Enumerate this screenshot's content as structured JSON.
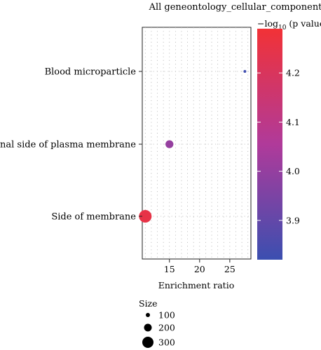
{
  "chart_data": {
    "type": "scatter",
    "title": "All geneontology_cellular_component",
    "xlabel": "Enrichment ratio",
    "categories": [
      "Blood microparticle",
      "External side of plasma membrane",
      "Side of membrane"
    ],
    "points": [
      {
        "category": "Blood microparticle",
        "x": 27.5,
        "size": 90,
        "p_log10": 3.83
      },
      {
        "category": "External side of plasma membrane",
        "x": 15.0,
        "size": 200,
        "p_log10": 4.0
      },
      {
        "category": "Side of membrane",
        "x": 11.0,
        "size": 300,
        "p_log10": 4.25
      }
    ],
    "xlim": [
      10.5,
      28.5
    ],
    "xticks": [
      "15",
      "20",
      "25"
    ],
    "grid": true,
    "legend_position": "right",
    "color_scale": {
      "title_prefix": "−log",
      "title_sub": "10",
      "title_suffix": " (p value)",
      "min": 3.82,
      "max": 4.29,
      "low_color": "#3b4fb0",
      "high_color": "#f23236",
      "ticks": [
        "4.2",
        "4.1",
        "4.0",
        "3.9"
      ]
    },
    "size_legend": {
      "title": "Size",
      "entries": [
        {
          "label": "100",
          "value": 100
        },
        {
          "label": "200",
          "value": 200
        },
        {
          "label": "300",
          "value": 300
        }
      ]
    }
  }
}
